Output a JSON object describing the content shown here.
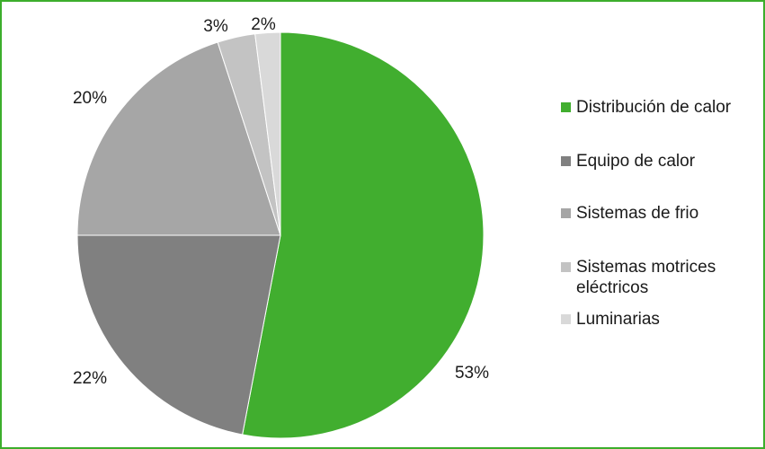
{
  "chart_data": {
    "type": "pie",
    "title": "",
    "legend_position": "right",
    "start_angle": "top, clockwise",
    "categories": [
      "Distribución de calor",
      "Equipo de calor",
      "Sistemas de frio",
      "Sistemas motrices eléctricos",
      "Luminarias"
    ],
    "values": [
      53,
      22,
      20,
      3,
      2
    ],
    "labels": [
      "53%",
      "22%",
      "20%",
      "3%",
      "2%"
    ],
    "colors": [
      "#41ae2f",
      "#808080",
      "#a6a6a6",
      "#c3c3c3",
      "#d9d9d9"
    ],
    "legend": [
      {
        "label": "Distribución de calor"
      },
      {
        "label": "Equipo de calor"
      },
      {
        "label": "Sistemas de frio"
      },
      {
        "label": "Sistemas motrices eléctricos"
      },
      {
        "label": "Luminarias"
      }
    ]
  },
  "colors": {
    "frame_border": "#3cae2c",
    "background": "#ffffff"
  }
}
